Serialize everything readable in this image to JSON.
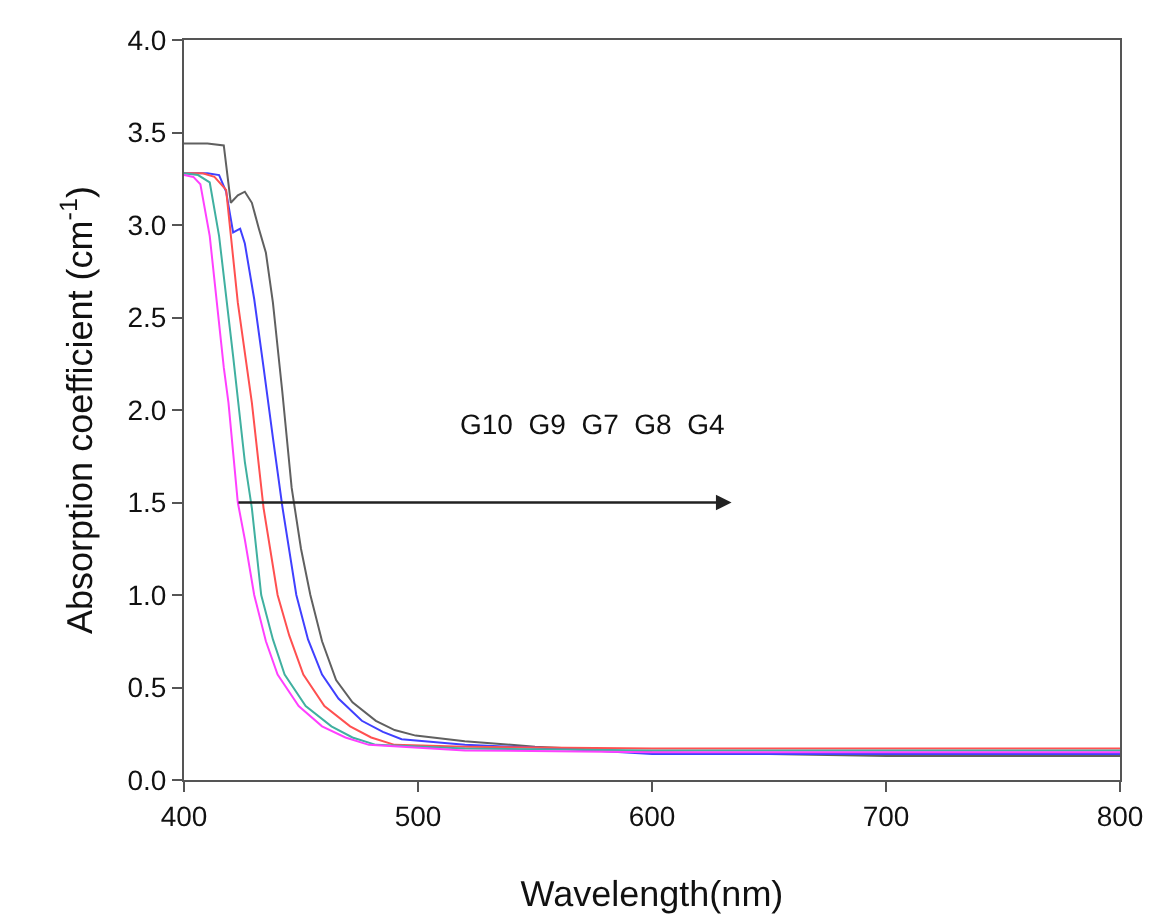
{
  "chart_data": {
    "type": "line",
    "xlabel": "Wavelength(nm)",
    "ylabel": "Absorption coefficient (cm$^{-1}$)",
    "annotations": [
      "G10  G9  G7  G8  G4"
    ],
    "xlim": [
      400,
      800
    ],
    "xticks": [
      400,
      500,
      600,
      700,
      800
    ],
    "ylim": [
      0,
      4
    ],
    "yticks": [
      {
        "value": 0,
        "label": "0.0"
      },
      {
        "value": 0.5,
        "label": "0.5"
      },
      {
        "value": 1,
        "label": "1.0"
      },
      {
        "value": 1.5,
        "label": "1.5"
      },
      {
        "value": 2,
        "label": "2.0"
      },
      {
        "value": 2.5,
        "label": "2.5"
      },
      {
        "value": 3,
        "label": "3.0"
      },
      {
        "value": 3.5,
        "label": "3.5"
      },
      {
        "value": 4,
        "label": "4.0"
      }
    ],
    "grid": false,
    "marker": "none",
    "line_style": "solid",
    "series": [
      {
        "color": "#606060",
        "x": [
          400,
          410,
          417,
          420,
          423,
          426,
          429,
          432,
          435,
          438,
          442,
          446,
          450,
          454,
          459,
          465,
          472,
          482,
          490,
          499,
          520,
          550,
          600,
          650,
          700,
          750,
          800
        ],
        "values": [
          3.44,
          3.44,
          3.43,
          3.12,
          3.16,
          3.18,
          3.12,
          2.98,
          2.85,
          2.58,
          2.1,
          1.58,
          1.25,
          1.0,
          0.75,
          0.54,
          0.42,
          0.32,
          0.27,
          0.24,
          0.21,
          0.18,
          0.15,
          0.14,
          0.13,
          0.13,
          0.13
        ]
      },
      {
        "color": "#4040ff",
        "x": [
          400,
          410,
          415,
          418,
          421,
          424,
          426,
          430,
          434,
          438,
          442,
          448,
          453,
          459,
          466,
          476,
          485,
          493,
          520,
          560,
          600,
          650,
          700,
          750,
          800
        ],
        "values": [
          3.28,
          3.28,
          3.27,
          3.18,
          2.96,
          2.98,
          2.9,
          2.6,
          2.23,
          1.85,
          1.48,
          1.0,
          0.76,
          0.57,
          0.44,
          0.32,
          0.26,
          0.22,
          0.19,
          0.17,
          0.14,
          0.14,
          0.14,
          0.14,
          0.14
        ]
      },
      {
        "color": "#ff5050",
        "x": [
          400,
          408,
          413,
          418,
          423,
          429,
          434,
          440,
          445,
          451,
          460,
          471,
          480,
          490,
          520,
          600,
          650,
          700,
          750,
          800
        ],
        "values": [
          3.28,
          3.28,
          3.26,
          3.19,
          2.58,
          2.04,
          1.47,
          1.0,
          0.78,
          0.57,
          0.4,
          0.29,
          0.23,
          0.19,
          0.18,
          0.17,
          0.17,
          0.17,
          0.17,
          0.17
        ]
      },
      {
        "color": "#40b0a0",
        "x": [
          400,
          406,
          411,
          415,
          421,
          426,
          429,
          433,
          438,
          443,
          452,
          463,
          472,
          482,
          520,
          600,
          650,
          700,
          750,
          800
        ],
        "values": [
          3.28,
          3.27,
          3.23,
          2.94,
          2.29,
          1.72,
          1.47,
          1.0,
          0.76,
          0.57,
          0.4,
          0.29,
          0.23,
          0.19,
          0.17,
          0.16,
          0.16,
          0.16,
          0.16,
          0.16
        ]
      },
      {
        "color": "#ff40ff",
        "x": [
          400,
          404,
          407,
          411,
          417,
          419,
          423,
          426,
          430,
          435,
          440,
          449,
          459,
          469,
          479,
          520,
          600,
          650,
          700,
          750,
          800
        ],
        "values": [
          3.27,
          3.26,
          3.22,
          2.94,
          2.23,
          2.04,
          1.5,
          1.3,
          1.0,
          0.75,
          0.57,
          0.4,
          0.29,
          0.23,
          0.19,
          0.16,
          0.15,
          0.15,
          0.15,
          0.15,
          0.15
        ]
      }
    ]
  }
}
